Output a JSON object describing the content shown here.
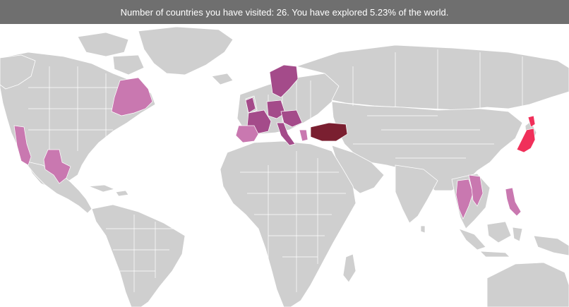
{
  "banner": {
    "text": "Number of countries you have visited: 26. You have explored 5.23% of the world."
  },
  "stats": {
    "countries_visited": 26,
    "percent_explored": 5.23
  },
  "colors": {
    "banner_bg": "#6f6f6f",
    "land": "#cfcfcf",
    "visited_light": "#c978b0",
    "visited_mid": "#a44b8a",
    "visited_home": "#7a1f30",
    "visited_hot": "#f0305a"
  },
  "highlighted_regions": [
    "california",
    "texas",
    "quebec",
    "spain",
    "france",
    "italy",
    "germany",
    "uk-ireland",
    "scandinavia",
    "greece",
    "turkey",
    "japan",
    "thailand",
    "vietnam",
    "philippines"
  ]
}
